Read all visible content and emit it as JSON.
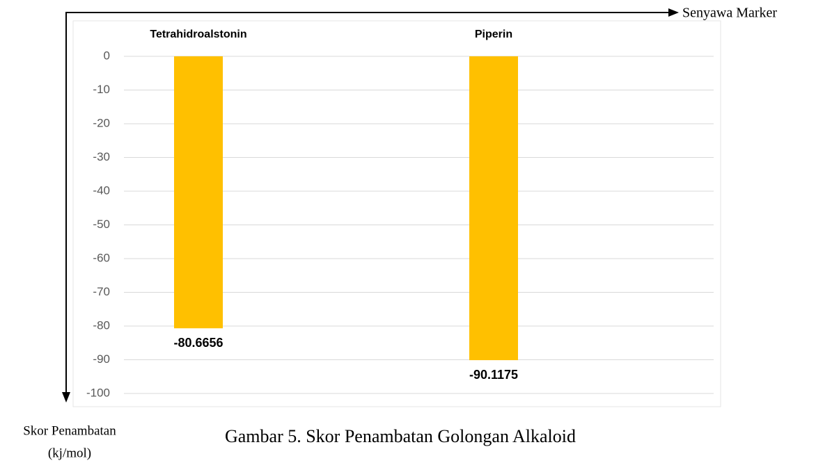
{
  "chart_data": {
    "type": "bar",
    "title": "Gambar 5. Skor Penambatan Golongan Alkaloid",
    "x_label": "Senyawa Marker",
    "y_label": [
      "Skor Penambatan",
      "(kj/mol)"
    ],
    "categories": [
      "Tetrahidroalstonin",
      "Piperin"
    ],
    "values": [
      -80.6656,
      -90.1175
    ],
    "color": "#ffc000",
    "ylim": [
      -100,
      0
    ],
    "yticks": [
      0,
      -10,
      -20,
      -30,
      -40,
      -50,
      -60,
      -70,
      -80,
      -90,
      -100
    ],
    "grid": true
  }
}
